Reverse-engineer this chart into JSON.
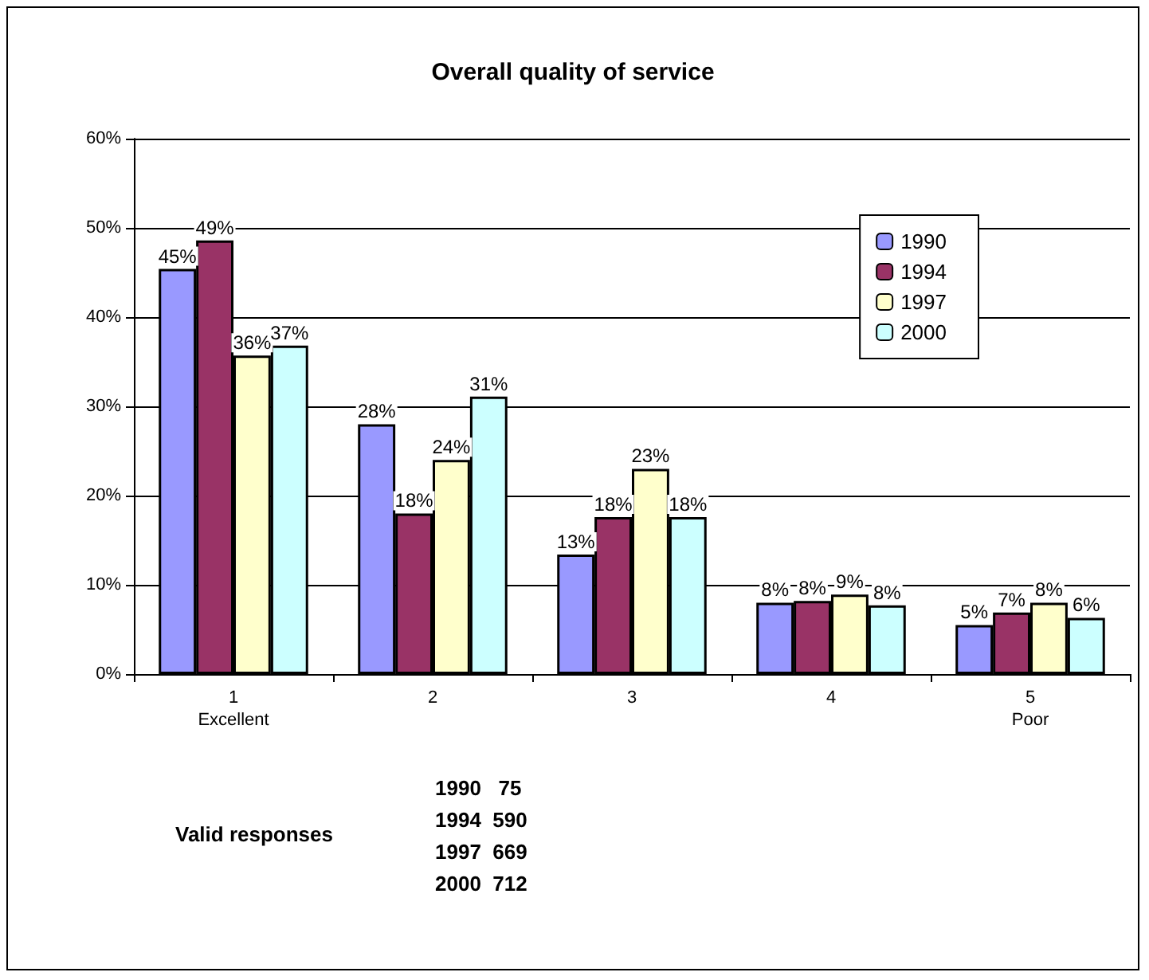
{
  "chart_data": {
    "type": "bar",
    "title": "Overall quality of service",
    "categories": [
      "1\nExcellent",
      "2",
      "3",
      "4",
      "5\nPoor"
    ],
    "series": [
      {
        "name": "1990",
        "color": "#9999ff",
        "values": [
          45.4,
          28.0,
          13.4,
          8.0,
          5.5
        ],
        "value_labels": [
          "45%",
          "28%",
          "13%",
          "8%",
          "5%"
        ]
      },
      {
        "name": "1994",
        "color": "#993366",
        "values": [
          48.6,
          18.0,
          17.6,
          8.2,
          6.9
        ],
        "value_labels": [
          "49%",
          "18%",
          "18%",
          "8%",
          "7%"
        ]
      },
      {
        "name": "1997",
        "color": "#ffffcc",
        "values": [
          35.7,
          24.0,
          23.0,
          8.9,
          8.0
        ],
        "value_labels": [
          "36%",
          "24%",
          "23%",
          "9%",
          "8%"
        ]
      },
      {
        "name": "2000",
        "color": "#ccffff",
        "values": [
          36.8,
          31.1,
          17.6,
          7.7,
          6.3
        ],
        "value_labels": [
          "37%",
          "31%",
          "18%",
          "8%",
          "6%"
        ]
      }
    ],
    "ylim": [
      0,
      60
    ],
    "yticks": [
      {
        "value": 0,
        "label": "0%"
      },
      {
        "value": 10,
        "label": "10%"
      },
      {
        "value": 20,
        "label": "20%"
      },
      {
        "value": 30,
        "label": "30%"
      },
      {
        "value": 40,
        "label": "40%"
      },
      {
        "value": 50,
        "label": "50%"
      },
      {
        "value": 60,
        "label": "60%"
      }
    ],
    "grid": "y",
    "legend": "top right",
    "annotations": [
      "Valid responses",
      "1990   75",
      "1994  590",
      "1997  669",
      "2000  712"
    ]
  }
}
